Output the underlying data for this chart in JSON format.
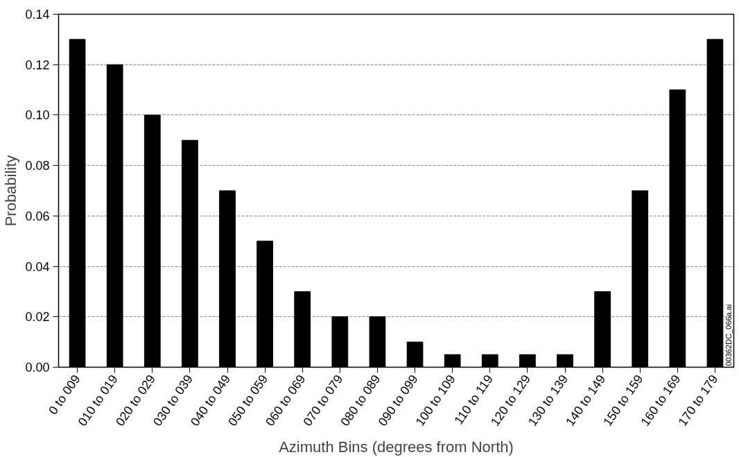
{
  "chart_data": {
    "type": "bar",
    "xlabel": "Azimuth Bins (degrees from North)",
    "ylabel": "Probability",
    "categories": [
      "0 to 009",
      "010 to 019",
      "020 to 029",
      "030 to 039",
      "040 to 049",
      "050 to 059",
      "060 to 069",
      "070 to 079",
      "080 to 089",
      "090 to 099",
      "100 to 109",
      "110 to 119",
      "120 to 129",
      "130 to 139",
      "140 to 149",
      "150 to 159",
      "160 to 169",
      "170 to 179"
    ],
    "values": [
      0.13,
      0.12,
      0.1,
      0.09,
      0.07,
      0.05,
      0.03,
      0.02,
      0.02,
      0.01,
      0.005,
      0.005,
      0.005,
      0.005,
      0.03,
      0.07,
      0.11,
      0.13
    ],
    "color": "#000000",
    "ylim": [
      0,
      0.14
    ],
    "yticks": [
      {
        "value": 0,
        "label": "0.00"
      },
      {
        "value": 0.02,
        "label": "0.02"
      },
      {
        "value": 0.04,
        "label": "0.04"
      },
      {
        "value": 0.06,
        "label": "0.06"
      },
      {
        "value": 0.08,
        "label": "0.08"
      },
      {
        "value": 0.1,
        "label": "0.10"
      },
      {
        "value": 0.12,
        "label": "0.12"
      },
      {
        "value": 0.14,
        "label": "0.14"
      }
    ],
    "grid": "y",
    "line_style": "dashed",
    "annotations": [
      "00362DC_066a.ai"
    ]
  }
}
